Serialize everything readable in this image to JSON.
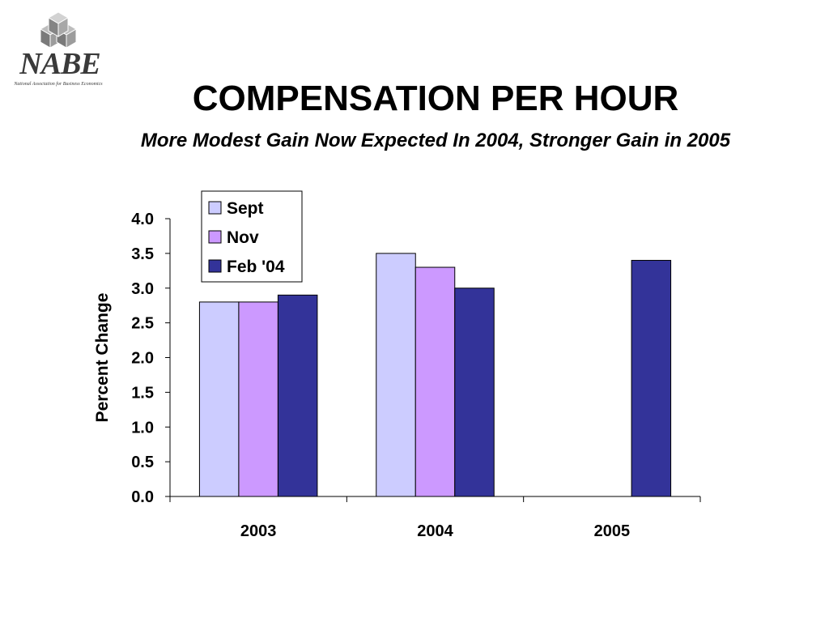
{
  "logo": {
    "name": "NABE",
    "subtitle": "National Association for Business Economics"
  },
  "header": {
    "title": "COMPENSATION PER HOUR",
    "subtitle": "More Modest Gain Now Expected In 2004, Stronger Gain in 2005"
  },
  "chart_data": {
    "type": "bar",
    "categories": [
      "2003",
      "2004",
      "2005"
    ],
    "series": [
      {
        "name": "Sept",
        "values": [
          2.8,
          3.5,
          null
        ],
        "color": "#ccccff"
      },
      {
        "name": "Nov",
        "values": [
          2.8,
          3.3,
          null
        ],
        "color": "#cc99ff"
      },
      {
        "name": "Feb '04",
        "values": [
          2.9,
          3.0,
          3.4
        ],
        "color": "#333399"
      }
    ],
    "ylabel": "Percent Change",
    "xlabel": "",
    "ylim": [
      0,
      4.0
    ],
    "yticks": [
      "0.0",
      "0.5",
      "1.0",
      "1.5",
      "2.0",
      "2.5",
      "3.0",
      "3.5",
      "4.0"
    ],
    "grid": false,
    "legend_position": "top-left"
  }
}
